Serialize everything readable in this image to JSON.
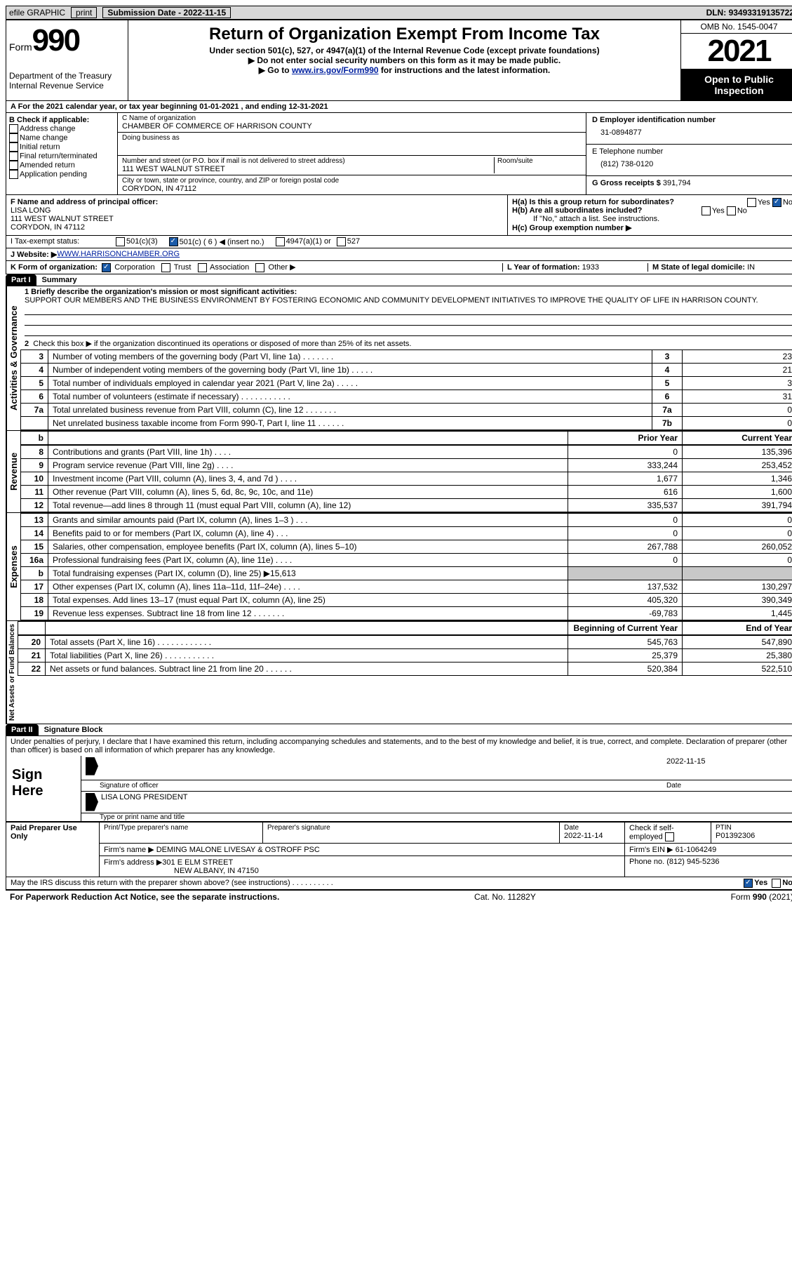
{
  "topbar": {
    "efile": "efile GRAPHIC",
    "print": "print",
    "submission_label": "Submission Date - ",
    "submission_date": "2022-11-15",
    "dln_label": "DLN: ",
    "dln": "93493319135722"
  },
  "header": {
    "form_word": "Form",
    "form_num": "990",
    "dept": "Department of the Treasury",
    "irs": "Internal Revenue Service",
    "title": "Return of Organization Exempt From Income Tax",
    "subtitle": "Under section 501(c), 527, or 4947(a)(1) of the Internal Revenue Code (except private foundations)",
    "note1": "Do not enter social security numbers on this form as it may be made public.",
    "note2_pre": "Go to ",
    "note2_link": "www.irs.gov/Form990",
    "note2_post": " for instructions and the latest information.",
    "omb": "OMB No. 1545-0047",
    "year": "2021",
    "open": "Open to Public Inspection"
  },
  "a_line": {
    "text": "A For the 2021 calendar year, or tax year beginning ",
    "begin": "01-01-2021",
    "mid": "   , and ending ",
    "end": "12-31-2021"
  },
  "b": {
    "label": "B Check if applicable:",
    "opts": [
      "Address change",
      "Name change",
      "Initial return",
      "Final return/terminated",
      "Amended return",
      "Application pending"
    ]
  },
  "c": {
    "name_label": "C Name of organization",
    "name": "CHAMBER OF COMMERCE OF HARRISON COUNTY",
    "dba_label": "Doing business as",
    "street_label": "Number and street (or P.O. box if mail is not delivered to street address)",
    "room_label": "Room/suite",
    "street": "111 WEST WALNUT STREET",
    "city_label": "City or town, state or province, country, and ZIP or foreign postal code",
    "city": "CORYDON, IN  47112"
  },
  "d": {
    "ein_label": "D Employer identification number",
    "ein": "31-0894877",
    "e_label": "E Telephone number",
    "phone": "(812) 738-0120",
    "g_label": "G Gross receipts $ ",
    "gross": "391,794"
  },
  "f": {
    "label": "F  Name and address of principal officer:",
    "name": "LISA LONG",
    "addr1": "111 WEST WALNUT STREET",
    "addr2": "CORYDON, IN  47112"
  },
  "h": {
    "a_label": "H(a)  Is this a group return for subordinates?",
    "b_label": "H(b)  Are all subordinates included?",
    "note": "If \"No,\" attach a list. See instructions.",
    "c_label": "H(c)  Group exemption number ▶",
    "yes": "Yes",
    "no": "No"
  },
  "i": {
    "label": "I   Tax-exempt status:",
    "o1": "501(c)(3)",
    "o2": "501(c) ( 6 ) ◀ (insert no.)",
    "o3": "4947(a)(1) or",
    "o4": "527"
  },
  "j": {
    "label": "J   Website: ▶  ",
    "url": "WWW.HARRISONCHAMBER.ORG"
  },
  "k": {
    "label": "K Form of organization:",
    "o1": "Corporation",
    "o2": "Trust",
    "o3": "Association",
    "o4": "Other ▶",
    "l_label": "L Year of formation: ",
    "l_val": "1933",
    "m_label": "M State of legal domicile: ",
    "m_val": "IN"
  },
  "part1": {
    "label": "Part I",
    "title": "Summary"
  },
  "mission": {
    "q": "1   Briefly describe the organization's mission or most significant activities:",
    "text": "SUPPORT OUR MEMBERS AND THE BUSINESS ENVIRONMENT BY FOSTERING ECONOMIC AND COMMUNITY DEVELOPMENT INITIATIVES TO IMPROVE THE QUALITY OF LIFE IN HARRISON COUNTY."
  },
  "summary": {
    "line2": "Check this box ▶       if the organization discontinued its operations or disposed of more than 25% of its net assets.",
    "rows_ag": [
      {
        "n": "3",
        "t": "Number of voting members of the governing body (Part VI, line 1a)   .     .     .     .     .     .     .",
        "b": "3",
        "v": "23"
      },
      {
        "n": "4",
        "t": "Number of independent voting members of the governing body (Part VI, line 1b)   .     .     .     .     .",
        "b": "4",
        "v": "21"
      },
      {
        "n": "5",
        "t": "Total number of individuals employed in calendar year 2021 (Part V, line 2a)   .     .     .     .     .",
        "b": "5",
        "v": "3"
      },
      {
        "n": "6",
        "t": "Total number of volunteers (estimate if necessary)    .     .     .     .     .     .     .     .     .     .     .",
        "b": "6",
        "v": "31"
      },
      {
        "n": "7a",
        "t": "Total unrelated business revenue from Part VIII, column (C), line 12   .     .     .     .     .     .     .",
        "b": "7a",
        "v": "0"
      },
      {
        "n": "",
        "t": "Net unrelated business taxable income from Form 990-T, Part I, line 11   .     .     .     .     .     .",
        "b": "7b",
        "v": "0"
      }
    ],
    "py": "Prior Year",
    "cy": "Current Year",
    "rows_rev": [
      {
        "n": "8",
        "t": "Contributions and grants (Part VIII, line 1h)   .     .     .     .",
        "p": "0",
        "c": "135,396"
      },
      {
        "n": "9",
        "t": "Program service revenue (Part VIII, line 2g)   .     .     .     .",
        "p": "333,244",
        "c": "253,452"
      },
      {
        "n": "10",
        "t": "Investment income (Part VIII, column (A), lines 3, 4, and 7d )    .     .     .     .",
        "p": "1,677",
        "c": "1,346"
      },
      {
        "n": "11",
        "t": "Other revenue (Part VIII, column (A), lines 5, 6d, 8c, 9c, 10c, and 11e)",
        "p": "616",
        "c": "1,600"
      },
      {
        "n": "12",
        "t": "Total revenue—add lines 8 through 11 (must equal Part VIII, column (A), line 12)",
        "p": "335,537",
        "c": "391,794"
      }
    ],
    "rows_exp": [
      {
        "n": "13",
        "t": "Grants and similar amounts paid (Part IX, column (A), lines 1–3 )   .     .     .",
        "p": "0",
        "c": "0"
      },
      {
        "n": "14",
        "t": "Benefits paid to or for members (Part IX, column (A), line 4)   .     .     .",
        "p": "0",
        "c": "0"
      },
      {
        "n": "15",
        "t": "Salaries, other compensation, employee benefits (Part IX, column (A), lines 5–10)",
        "p": "267,788",
        "c": "260,052"
      },
      {
        "n": "16a",
        "t": "Professional fundraising fees (Part IX, column (A), line 11e)    .     .     .     .",
        "p": "0",
        "c": "0"
      },
      {
        "n": "b",
        "t": "Total fundraising expenses (Part IX, column (D), line 25) ▶15,613",
        "p": "",
        "c": "",
        "shade": true
      },
      {
        "n": "17",
        "t": "Other expenses (Part IX, column (A), lines 11a–11d, 11f–24e)   .     .     .     .",
        "p": "137,532",
        "c": "130,297"
      },
      {
        "n": "18",
        "t": "Total expenses. Add lines 13–17 (must equal Part IX, column (A), line 25)",
        "p": "405,320",
        "c": "390,349"
      },
      {
        "n": "19",
        "t": "Revenue less expenses. Subtract line 18 from line 12   .     .     .     .     .     .     .",
        "p": "-69,783",
        "c": "1,445"
      }
    ],
    "bcy": "Beginning of Current Year",
    "eoy": "End of Year",
    "rows_net": [
      {
        "n": "20",
        "t": "Total assets (Part X, line 16)   .     .     .     .     .     .     .     .     .     .     .     .",
        "p": "545,763",
        "c": "547,890"
      },
      {
        "n": "21",
        "t": "Total liabilities (Part X, line 26)   .     .     .     .     .     .     .     .     .     .     .",
        "p": "25,379",
        "c": "25,380"
      },
      {
        "n": "22",
        "t": "Net assets or fund balances. Subtract line 21 from line 20   .     .     .     .     .     .",
        "p": "520,384",
        "c": "522,510"
      }
    ]
  },
  "vtabs": {
    "ag": "Activities & Governance",
    "rev": "Revenue",
    "exp": "Expenses",
    "net": "Net Assets or Fund Balances"
  },
  "part2": {
    "label": "Part II",
    "title": "Signature Block",
    "decl": "Under penalties of perjury, I declare that I have examined this return, including accompanying schedules and statements, and to the best of my knowledge and belief, it is true, correct, and complete. Declaration of preparer (other than officer) is based on all information of which preparer has any knowledge."
  },
  "sign": {
    "here": "Sign Here",
    "sig_officer": "Signature of officer",
    "date": "Date",
    "sig_date": "2022-11-15",
    "name_title": "LISA LONG  PRESIDENT",
    "type_name": "Type or print name and title"
  },
  "paid": {
    "label": "Paid Preparer Use Only",
    "c1": "Print/Type preparer's name",
    "c2": "Preparer's signature",
    "c3_l": "Date",
    "c3_v": "2022-11-14",
    "c4": "Check         if self-employed",
    "c5_l": "PTIN",
    "c5_v": "P01392306",
    "firm_l": "Firm's name     ▶ ",
    "firm": "DEMING MALONE LIVESAY & OSTROFF PSC",
    "ein_l": "Firm's EIN ▶ ",
    "ein": "61-1064249",
    "addr_l": "Firm's address ▶",
    "addr1": "301 E ELM STREET",
    "addr2": "NEW ALBANY, IN  47150",
    "phone_l": "Phone no. ",
    "phone": "(812) 945-5236"
  },
  "discuss": {
    "q": "May the IRS discuss this return with the preparer shown above? (see instructions)    .     .     .     .     .     .     .     .     .     .",
    "yes": "Yes",
    "no": "No"
  },
  "footer": {
    "left": "For Paperwork Reduction Act Notice, see the separate instructions.",
    "mid": "Cat. No. 11282Y",
    "right": "Form 990 (2021)"
  }
}
